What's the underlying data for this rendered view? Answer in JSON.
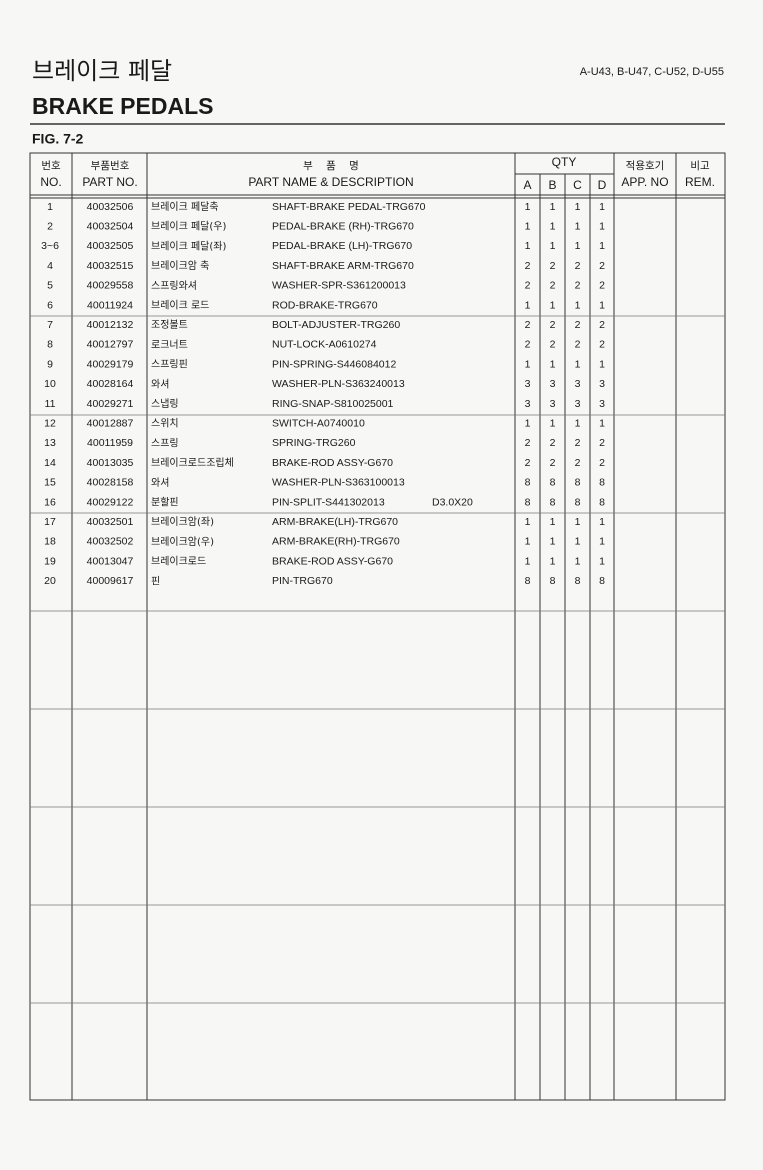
{
  "header": {
    "title_ko": "브레이크 페달",
    "title_en": "BRAKE PEDALS",
    "models": "A-U43, B-U47, C-U52, D-U55",
    "fig": "FIG. 7-2"
  },
  "table": {
    "headers": {
      "no_ko": "번호",
      "no_en": "NO.",
      "part_ko": "부품번호",
      "part_en": "PART NO.",
      "name_ko": "부    품    명",
      "name_en": "PART NAME & DESCRIPTION",
      "qty": "QTY",
      "qty_cols": [
        "A",
        "B",
        "C",
        "D"
      ],
      "app_ko": "적용호기",
      "app_en": "APP. NO",
      "rem_ko": "비고",
      "rem_en": "REM."
    },
    "rows": [
      {
        "no": "1",
        "part_no": "40032506",
        "name_ko": "브레이크 페달축",
        "name_en": "SHAFT-BRAKE PEDAL-TRG670",
        "qty": [
          1,
          1,
          1,
          1
        ]
      },
      {
        "no": "2",
        "part_no": "40032504",
        "name_ko": "브레이크 페달(우)",
        "name_en": "PEDAL-BRAKE (RH)-TRG670",
        "qty": [
          1,
          1,
          1,
          1
        ]
      },
      {
        "no": "3~6",
        "part_no": "40032505",
        "name_ko": "브레이크 페달(좌)",
        "name_en": "PEDAL-BRAKE (LH)-TRG670",
        "qty": [
          1,
          1,
          1,
          1
        ]
      },
      {
        "no": "4",
        "part_no": "40032515",
        "name_ko": "브레이크암 축",
        "name_en": "SHAFT-BRAKE ARM-TRG670",
        "qty": [
          2,
          2,
          2,
          2
        ]
      },
      {
        "no": "5",
        "part_no": "40029558",
        "name_ko": "스프링와셔",
        "name_en": "WASHER-SPR-S361200013",
        "qty": [
          2,
          2,
          2,
          2
        ]
      },
      {
        "no": "6",
        "part_no": "40011924",
        "name_ko": "브레이크 로드",
        "name_en": "ROD-BRAKE-TRG670",
        "qty": [
          1,
          1,
          1,
          1
        ]
      },
      {
        "no": "7",
        "part_no": "40012132",
        "name_ko": "조정볼트",
        "name_en": "BOLT-ADJUSTER-TRG260",
        "qty": [
          2,
          2,
          2,
          2
        ]
      },
      {
        "no": "8",
        "part_no": "40012797",
        "name_ko": "로크너트",
        "name_en": "NUT-LOCK-A0610274",
        "qty": [
          2,
          2,
          2,
          2
        ]
      },
      {
        "no": "9",
        "part_no": "40029179",
        "name_ko": "스프링핀",
        "name_en": "PIN-SPRING-S446084012",
        "qty": [
          1,
          1,
          1,
          1
        ]
      },
      {
        "no": "10",
        "part_no": "40028164",
        "name_ko": "와셔",
        "name_en": "WASHER-PLN-S363240013",
        "qty": [
          3,
          3,
          3,
          3
        ]
      },
      {
        "no": "11",
        "part_no": "40029271",
        "name_ko": "스냅링",
        "name_en": "RING-SNAP-S810025001",
        "qty": [
          3,
          3,
          3,
          3
        ]
      },
      {
        "no": "12",
        "part_no": "40012887",
        "name_ko": "스위치",
        "name_en": "SWITCH-A0740010",
        "qty": [
          1,
          1,
          1,
          1
        ]
      },
      {
        "no": "13",
        "part_no": "40011959",
        "name_ko": "스프링",
        "name_en": "SPRING-TRG260",
        "qty": [
          2,
          2,
          2,
          2
        ]
      },
      {
        "no": "14",
        "part_no": "40013035",
        "name_ko": "브레이크로드조립체",
        "name_en": "BRAKE-ROD ASSY-G670",
        "qty": [
          2,
          2,
          2,
          2
        ]
      },
      {
        "no": "15",
        "part_no": "40028158",
        "name_ko": "와셔",
        "name_en": "WASHER-PLN-S363100013",
        "qty": [
          8,
          8,
          8,
          8
        ]
      },
      {
        "no": "16",
        "part_no": "40029122",
        "name_ko": "분할핀",
        "name_en": "PIN-SPLIT-S441302013",
        "spec": "D3.0X20",
        "qty": [
          8,
          8,
          8,
          8
        ]
      },
      {
        "no": "17",
        "part_no": "40032501",
        "name_ko": "브레이크암(좌)",
        "name_en": "ARM-BRAKE(LH)-TRG670",
        "qty": [
          1,
          1,
          1,
          1
        ]
      },
      {
        "no": "18",
        "part_no": "40032502",
        "name_ko": "브레이크암(우)",
        "name_en": "ARM-BRAKE(RH)-TRG670",
        "qty": [
          1,
          1,
          1,
          1
        ]
      },
      {
        "no": "19",
        "part_no": "40013047",
        "name_ko": "브레이크로드",
        "name_en": "BRAKE-ROD ASSY-G670",
        "qty": [
          1,
          1,
          1,
          1
        ]
      },
      {
        "no": "20",
        "part_no": "40009617",
        "name_ko": "핀",
        "name_en": "PIN-TRG670",
        "qty": [
          8,
          8,
          8,
          8
        ]
      }
    ]
  }
}
